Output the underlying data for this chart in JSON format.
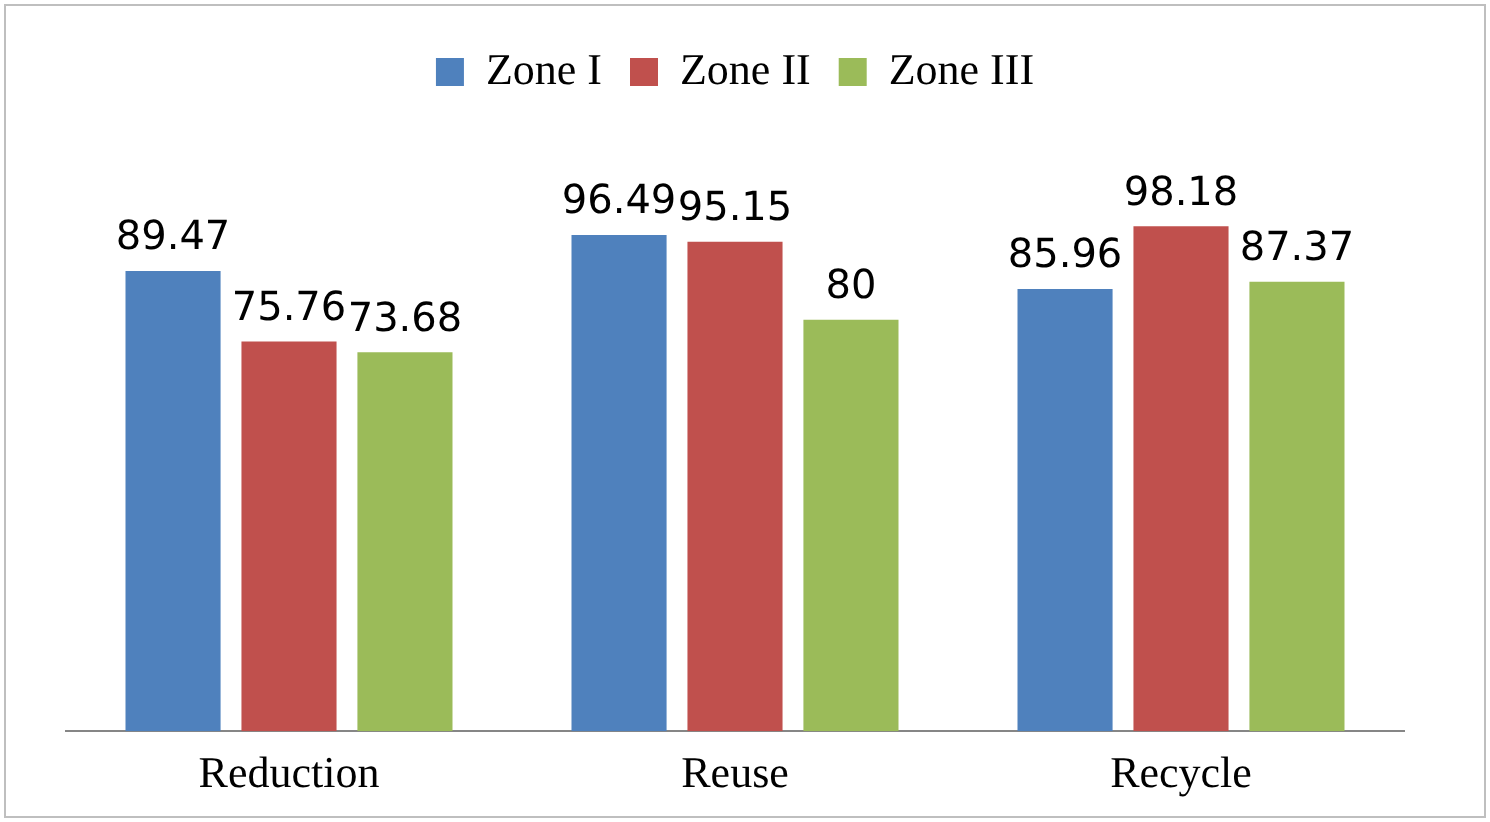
{
  "chart_data": {
    "type": "bar",
    "categories": [
      "Reduction",
      "Reuse",
      "Recycle"
    ],
    "series": [
      {
        "name": "Zone I",
        "color": "#4f81bd",
        "values": [
          89.47,
          96.49,
          85.96
        ]
      },
      {
        "name": "Zone II",
        "color": "#c0504d",
        "values": [
          75.76,
          95.15,
          98.18
        ]
      },
      {
        "name": "Zone III",
        "color": "#9bbb59",
        "values": [
          73.68,
          80,
          87.37
        ]
      }
    ],
    "data_labels": true,
    "legend": "top",
    "grid": false,
    "tick_labels": "x"
  }
}
